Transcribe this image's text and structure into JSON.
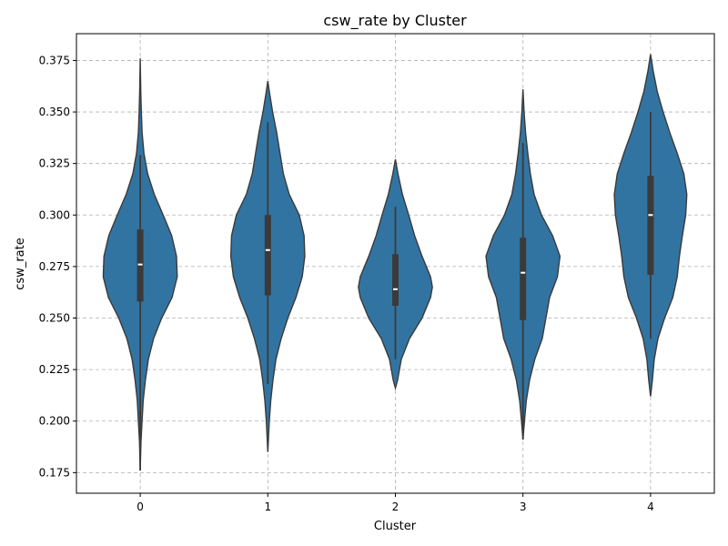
{
  "chart_data": {
    "type": "violin",
    "title": "csw_rate by Cluster",
    "xlabel": "Cluster",
    "ylabel": "csw_rate",
    "categories": [
      "0",
      "1",
      "2",
      "3",
      "4"
    ],
    "ylim": [
      0.165,
      0.388
    ],
    "yticks": [
      0.175,
      0.2,
      0.225,
      0.25,
      0.275,
      0.3,
      0.325,
      0.35,
      0.375
    ],
    "ytick_labels": [
      "0.175",
      "0.200",
      "0.225",
      "0.250",
      "0.275",
      "0.300",
      "0.325",
      "0.350",
      "0.375"
    ],
    "grid": true,
    "color": "#3274a1",
    "violins": [
      {
        "category": "0",
        "min": 0.176,
        "q1": 0.258,
        "median": 0.276,
        "q3": 0.293,
        "max": 0.376,
        "whisker_low": 0.176,
        "whisker_high": 0.329,
        "density": [
          [
            0.176,
            0.0
          ],
          [
            0.19,
            0.02
          ],
          [
            0.2,
            0.05
          ],
          [
            0.21,
            0.08
          ],
          [
            0.22,
            0.14
          ],
          [
            0.23,
            0.22
          ],
          [
            0.24,
            0.36
          ],
          [
            0.25,
            0.58
          ],
          [
            0.26,
            0.86
          ],
          [
            0.27,
            1.0
          ],
          [
            0.28,
            0.98
          ],
          [
            0.29,
            0.85
          ],
          [
            0.3,
            0.62
          ],
          [
            0.31,
            0.38
          ],
          [
            0.32,
            0.2
          ],
          [
            0.33,
            0.1
          ],
          [
            0.34,
            0.05
          ],
          [
            0.35,
            0.03
          ],
          [
            0.36,
            0.015
          ],
          [
            0.376,
            0.0
          ]
        ]
      },
      {
        "category": "1",
        "min": 0.185,
        "q1": 0.261,
        "median": 0.283,
        "q3": 0.3,
        "max": 0.365,
        "whisker_low": 0.218,
        "whisker_high": 0.345,
        "density": [
          [
            0.185,
            0.0
          ],
          [
            0.2,
            0.04
          ],
          [
            0.21,
            0.08
          ],
          [
            0.22,
            0.14
          ],
          [
            0.23,
            0.22
          ],
          [
            0.24,
            0.36
          ],
          [
            0.25,
            0.54
          ],
          [
            0.26,
            0.76
          ],
          [
            0.27,
            0.93
          ],
          [
            0.28,
            1.0
          ],
          [
            0.29,
            0.98
          ],
          [
            0.3,
            0.85
          ],
          [
            0.31,
            0.58
          ],
          [
            0.32,
            0.42
          ],
          [
            0.33,
            0.33
          ],
          [
            0.34,
            0.24
          ],
          [
            0.35,
            0.13
          ],
          [
            0.36,
            0.04
          ],
          [
            0.365,
            0.0
          ]
        ]
      },
      {
        "category": "2",
        "min": 0.216,
        "q1": 0.256,
        "median": 0.264,
        "q3": 0.281,
        "max": 0.327,
        "whisker_low": 0.23,
        "whisker_high": 0.304,
        "density": [
          [
            0.216,
            0.0
          ],
          [
            0.22,
            0.06
          ],
          [
            0.23,
            0.16
          ],
          [
            0.24,
            0.38
          ],
          [
            0.25,
            0.72
          ],
          [
            0.26,
            0.95
          ],
          [
            0.265,
            1.0
          ],
          [
            0.27,
            0.95
          ],
          [
            0.28,
            0.72
          ],
          [
            0.29,
            0.52
          ],
          [
            0.3,
            0.36
          ],
          [
            0.31,
            0.19
          ],
          [
            0.32,
            0.07
          ],
          [
            0.327,
            0.0
          ]
        ]
      },
      {
        "category": "3",
        "min": 0.191,
        "q1": 0.249,
        "median": 0.272,
        "q3": 0.289,
        "max": 0.361,
        "whisker_low": 0.191,
        "whisker_high": 0.335,
        "density": [
          [
            0.191,
            0.0
          ],
          [
            0.2,
            0.04
          ],
          [
            0.21,
            0.09
          ],
          [
            0.22,
            0.18
          ],
          [
            0.23,
            0.32
          ],
          [
            0.24,
            0.52
          ],
          [
            0.25,
            0.62
          ],
          [
            0.26,
            0.72
          ],
          [
            0.27,
            0.93
          ],
          [
            0.28,
            1.0
          ],
          [
            0.29,
            0.8
          ],
          [
            0.3,
            0.5
          ],
          [
            0.31,
            0.3
          ],
          [
            0.32,
            0.2
          ],
          [
            0.33,
            0.13
          ],
          [
            0.34,
            0.07
          ],
          [
            0.35,
            0.03
          ],
          [
            0.361,
            0.0
          ]
        ]
      },
      {
        "category": "4",
        "min": 0.212,
        "q1": 0.271,
        "median": 0.3,
        "q3": 0.319,
        "max": 0.378,
        "whisker_low": 0.24,
        "whisker_high": 0.35,
        "density": [
          [
            0.212,
            0.0
          ],
          [
            0.22,
            0.05
          ],
          [
            0.23,
            0.1
          ],
          [
            0.24,
            0.2
          ],
          [
            0.25,
            0.38
          ],
          [
            0.26,
            0.6
          ],
          [
            0.27,
            0.72
          ],
          [
            0.28,
            0.78
          ],
          [
            0.29,
            0.86
          ],
          [
            0.3,
            0.95
          ],
          [
            0.31,
            0.98
          ],
          [
            0.32,
            0.9
          ],
          [
            0.33,
            0.72
          ],
          [
            0.34,
            0.52
          ],
          [
            0.35,
            0.34
          ],
          [
            0.36,
            0.18
          ],
          [
            0.37,
            0.07
          ],
          [
            0.378,
            0.0
          ]
        ]
      }
    ]
  }
}
